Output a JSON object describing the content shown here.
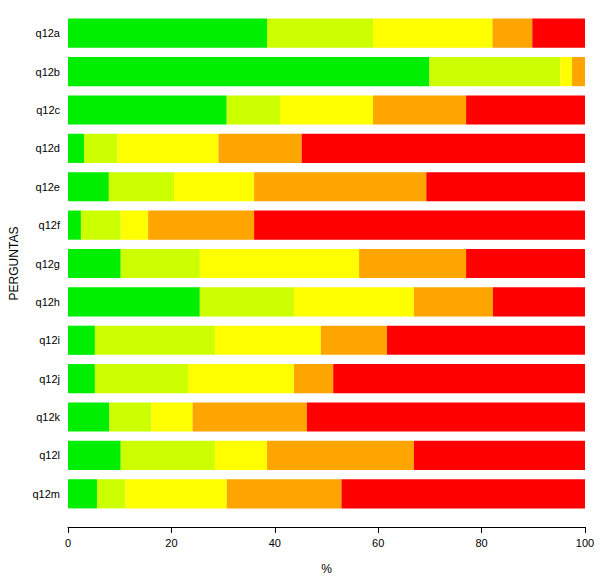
{
  "chart_data": {
    "type": "bar",
    "orientation": "horizontal",
    "stacked": true,
    "xlabel": "%",
    "ylabel": "PERGUNTAS",
    "categories": [
      "q12a",
      "q12b",
      "q12c",
      "q12d",
      "q12e",
      "q12f",
      "q12g",
      "q12h",
      "q12i",
      "q12j",
      "q12k",
      "q12l",
      "q12m"
    ],
    "series": [
      {
        "color": "#00ee00",
        "values": [
          38.5,
          69.9,
          30.7,
          3.1,
          7.9,
          2.5,
          10.2,
          25.5,
          5.2,
          5.2,
          8.0,
          10.2,
          5.6
        ]
      },
      {
        "color": "#ccff00",
        "values": [
          20.5,
          25.3,
          10.3,
          6.5,
          12.6,
          7.7,
          15.3,
          18.2,
          23.2,
          18.0,
          8.1,
          18.2,
          5.5
        ]
      },
      {
        "color": "#ffff00",
        "values": [
          23.1,
          2.3,
          18.0,
          19.5,
          15.5,
          5.3,
          30.8,
          23.2,
          20.5,
          20.5,
          8.0,
          10.1,
          19.6
        ]
      },
      {
        "color": "#ffa500",
        "values": [
          7.7,
          2.5,
          18.0,
          16.1,
          33.3,
          20.5,
          20.7,
          15.3,
          12.8,
          7.6,
          22.1,
          28.4,
          22.2
        ]
      },
      {
        "color": "#ff0000",
        "values": [
          10.2,
          0,
          23.0,
          54.8,
          30.7,
          64.0,
          23.0,
          17.8,
          38.3,
          48.7,
          53.8,
          33.1,
          47.1
        ]
      }
    ],
    "xlim": [
      0,
      100
    ],
    "xticks": [
      0,
      20,
      40,
      60,
      80,
      100
    ],
    "grid": false
  }
}
